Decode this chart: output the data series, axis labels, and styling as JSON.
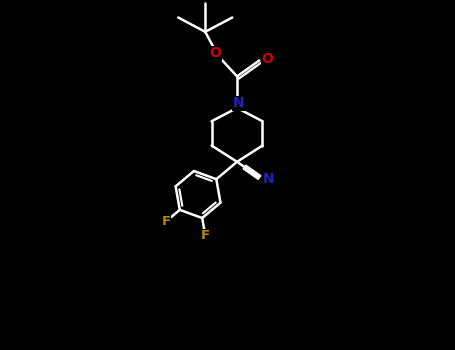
{
  "bg": "#000000",
  "wh": "#ffffff",
  "N_col": "#2222bb",
  "O_col": "#cc0000",
  "F_col": "#bb8800",
  "lw": 1.8,
  "fs": 9.5,
  "xlim": [
    -2.5,
    7.5
  ],
  "ylim": [
    -5.5,
    5.5
  ]
}
